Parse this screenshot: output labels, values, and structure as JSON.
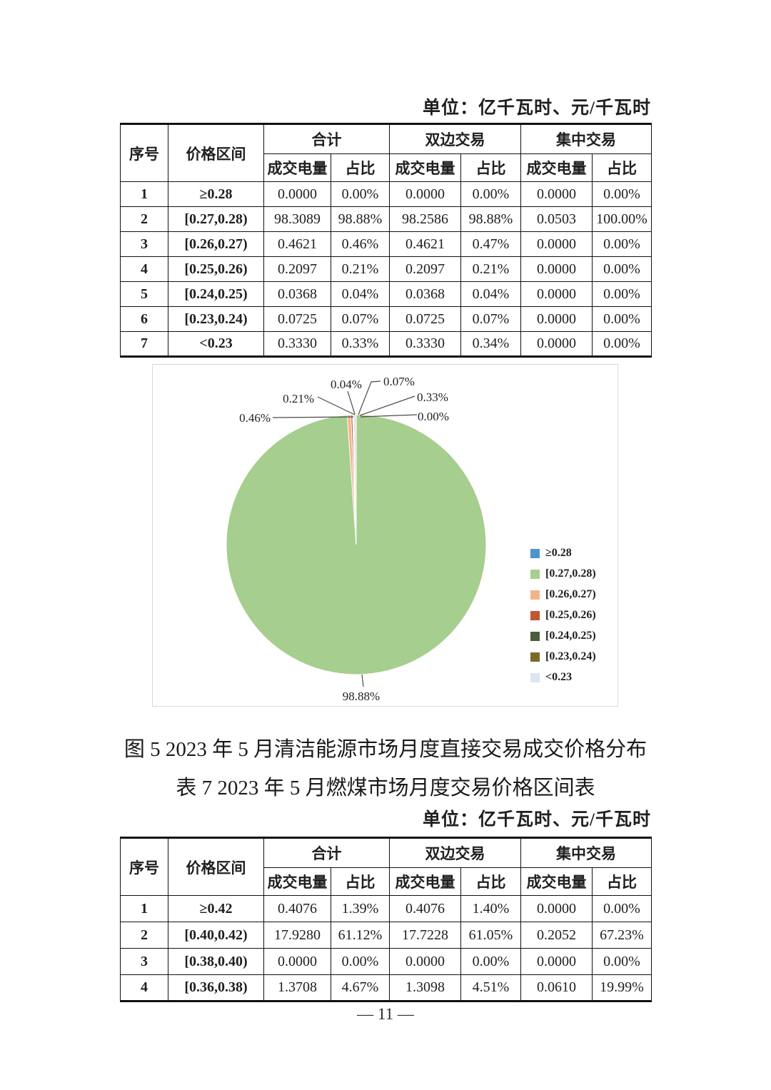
{
  "unit_label": "单位：亿千瓦时、元/千瓦时",
  "unit_label_2": "单位：亿千瓦时、元/千瓦时",
  "table_headers": {
    "seq": "序号",
    "range": "价格区间",
    "group_total": "合计",
    "group_bilateral": "双边交易",
    "group_centralized": "集中交易",
    "volume": "成交电量",
    "share": "占比"
  },
  "table1": {
    "rows": [
      [
        "1",
        "≥0.28",
        "0.0000",
        "0.00%",
        "0.0000",
        "0.00%",
        "0.0000",
        "0.00%"
      ],
      [
        "2",
        "[0.27,0.28)",
        "98.3089",
        "98.88%",
        "98.2586",
        "98.88%",
        "0.0503",
        "100.00%"
      ],
      [
        "3",
        "[0.26,0.27)",
        "0.4621",
        "0.46%",
        "0.4621",
        "0.47%",
        "0.0000",
        "0.00%"
      ],
      [
        "4",
        "[0.25,0.26)",
        "0.2097",
        "0.21%",
        "0.2097",
        "0.21%",
        "0.0000",
        "0.00%"
      ],
      [
        "5",
        "[0.24,0.25)",
        "0.0368",
        "0.04%",
        "0.0368",
        "0.04%",
        "0.0000",
        "0.00%"
      ],
      [
        "6",
        "[0.23,0.24)",
        "0.0725",
        "0.07%",
        "0.0725",
        "0.07%",
        "0.0000",
        "0.00%"
      ],
      [
        "7",
        "<0.23",
        "0.3330",
        "0.33%",
        "0.3330",
        "0.34%",
        "0.0000",
        "0.00%"
      ]
    ]
  },
  "chart_data": {
    "type": "pie",
    "title": "图 5  2023 年 5 月清洁能源市场月度直接交易成交价格分布",
    "categories": [
      "≥0.28",
      "[0.27,0.28)",
      "[0.26,0.27)",
      "[0.25,0.26)",
      "[0.24,0.25)",
      "[0.23,0.24)",
      "<0.23"
    ],
    "values": [
      0.0,
      98.88,
      0.46,
      0.21,
      0.04,
      0.07,
      0.33
    ],
    "labels": [
      "0.00%",
      "98.88%",
      "0.46%",
      "0.21%",
      "0.04%",
      "0.07%",
      "0.33%"
    ],
    "colors": [
      "#4D94CE",
      "#A6CE8E",
      "#F3B489",
      "#C0572E",
      "#4A5D3A",
      "#7C6B28",
      "#DCE5F0"
    ],
    "legend_position": "right",
    "start_angle_deg": 0,
    "direction": "clockwise"
  },
  "figure_caption": "图 5  2023 年 5 月清洁能源市场月度直接交易成交价格分布",
  "table2_caption": "表 7  2023 年 5 月燃煤市场月度交易价格区间表",
  "table2": {
    "rows": [
      [
        "1",
        "≥0.42",
        "0.4076",
        "1.39%",
        "0.4076",
        "1.40%",
        "0.0000",
        "0.00%"
      ],
      [
        "2",
        "[0.40,0.42)",
        "17.9280",
        "61.12%",
        "17.7228",
        "61.05%",
        "0.2052",
        "67.23%"
      ],
      [
        "3",
        "[0.38,0.40)",
        "0.0000",
        "0.00%",
        "0.0000",
        "0.00%",
        "0.0000",
        "0.00%"
      ],
      [
        "4",
        "[0.36,0.38)",
        "1.3708",
        "4.67%",
        "1.3098",
        "4.51%",
        "0.0610",
        "19.99%"
      ]
    ]
  },
  "page_number": "— 11 —"
}
